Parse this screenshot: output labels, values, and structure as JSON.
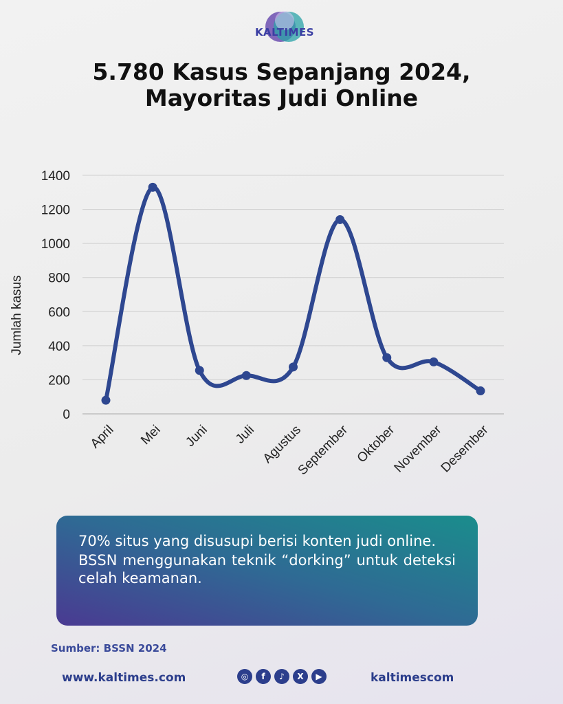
{
  "brand": {
    "name": "KALTIMES"
  },
  "title_line1": "5.780 Kasus Sepanjang 2024,",
  "title_line2": "Mayoritas Judi Online",
  "chart_data": {
    "type": "line",
    "categories": [
      "April",
      "Mei",
      "Juni",
      "Juli",
      "Agustus",
      "September",
      "Oktober",
      "November",
      "Desember"
    ],
    "values": [
      80,
      1330,
      255,
      225,
      275,
      1140,
      330,
      305,
      135
    ],
    "title": "",
    "xlabel": "",
    "ylabel": "Jumlah kasus",
    "ylim": [
      0,
      1400
    ],
    "yticks": [
      0,
      200,
      400,
      600,
      800,
      1000,
      1200,
      1400
    ],
    "grid": true,
    "legend": "none",
    "line_color": "#2e4790",
    "smooth": true
  },
  "info": {
    "line1": "70% situs yang disusupi berisi konten judi online.",
    "line2": "BSSN menggunakan teknik “dorking” untuk deteksi celah keamanan."
  },
  "source": "Sumber: BSSN 2024",
  "footer": {
    "website": "www.kaltimes.com",
    "handle": "kaltimescom",
    "social_icons": [
      "instagram-icon",
      "facebook-icon",
      "tiktok-icon",
      "x-icon",
      "youtube-icon"
    ]
  }
}
